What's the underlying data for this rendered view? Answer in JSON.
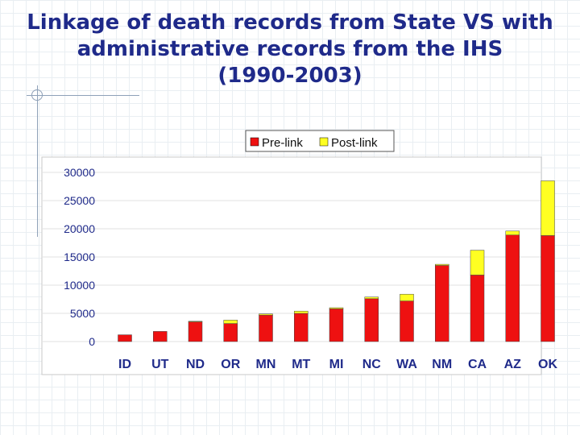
{
  "slide": {
    "title_lines": [
      "Linkage of death records from State VS with",
      "administrative records from the IHS",
      "(1990-2003)"
    ]
  },
  "colors": {
    "title": "#1f2a8a",
    "pre_link": "#ee1111",
    "post_link": "#ffff22"
  },
  "chart_data": {
    "type": "bar",
    "stacked": true,
    "title": "",
    "xlabel": "",
    "ylabel": "",
    "ylim": [
      0,
      30000
    ],
    "yticks": [
      0,
      5000,
      10000,
      15000,
      20000,
      25000,
      30000
    ],
    "legend_position": "top-center",
    "categories": [
      "ID",
      "UT",
      "ND",
      "OR",
      "MN",
      "MT",
      "MI",
      "NC",
      "WA",
      "NM",
      "CA",
      "AZ",
      "OK"
    ],
    "series": [
      {
        "name": "Pre-link",
        "color": "#ee1111",
        "values": [
          1200,
          1800,
          3500,
          3200,
          4700,
          5000,
          5800,
          7600,
          7200,
          13500,
          11800,
          18900,
          18800
        ]
      },
      {
        "name": "Post-link",
        "color": "#ffff22",
        "values": [
          0,
          0,
          100,
          600,
          200,
          400,
          200,
          300,
          1200,
          200,
          4400,
          700,
          9700
        ]
      }
    ]
  }
}
